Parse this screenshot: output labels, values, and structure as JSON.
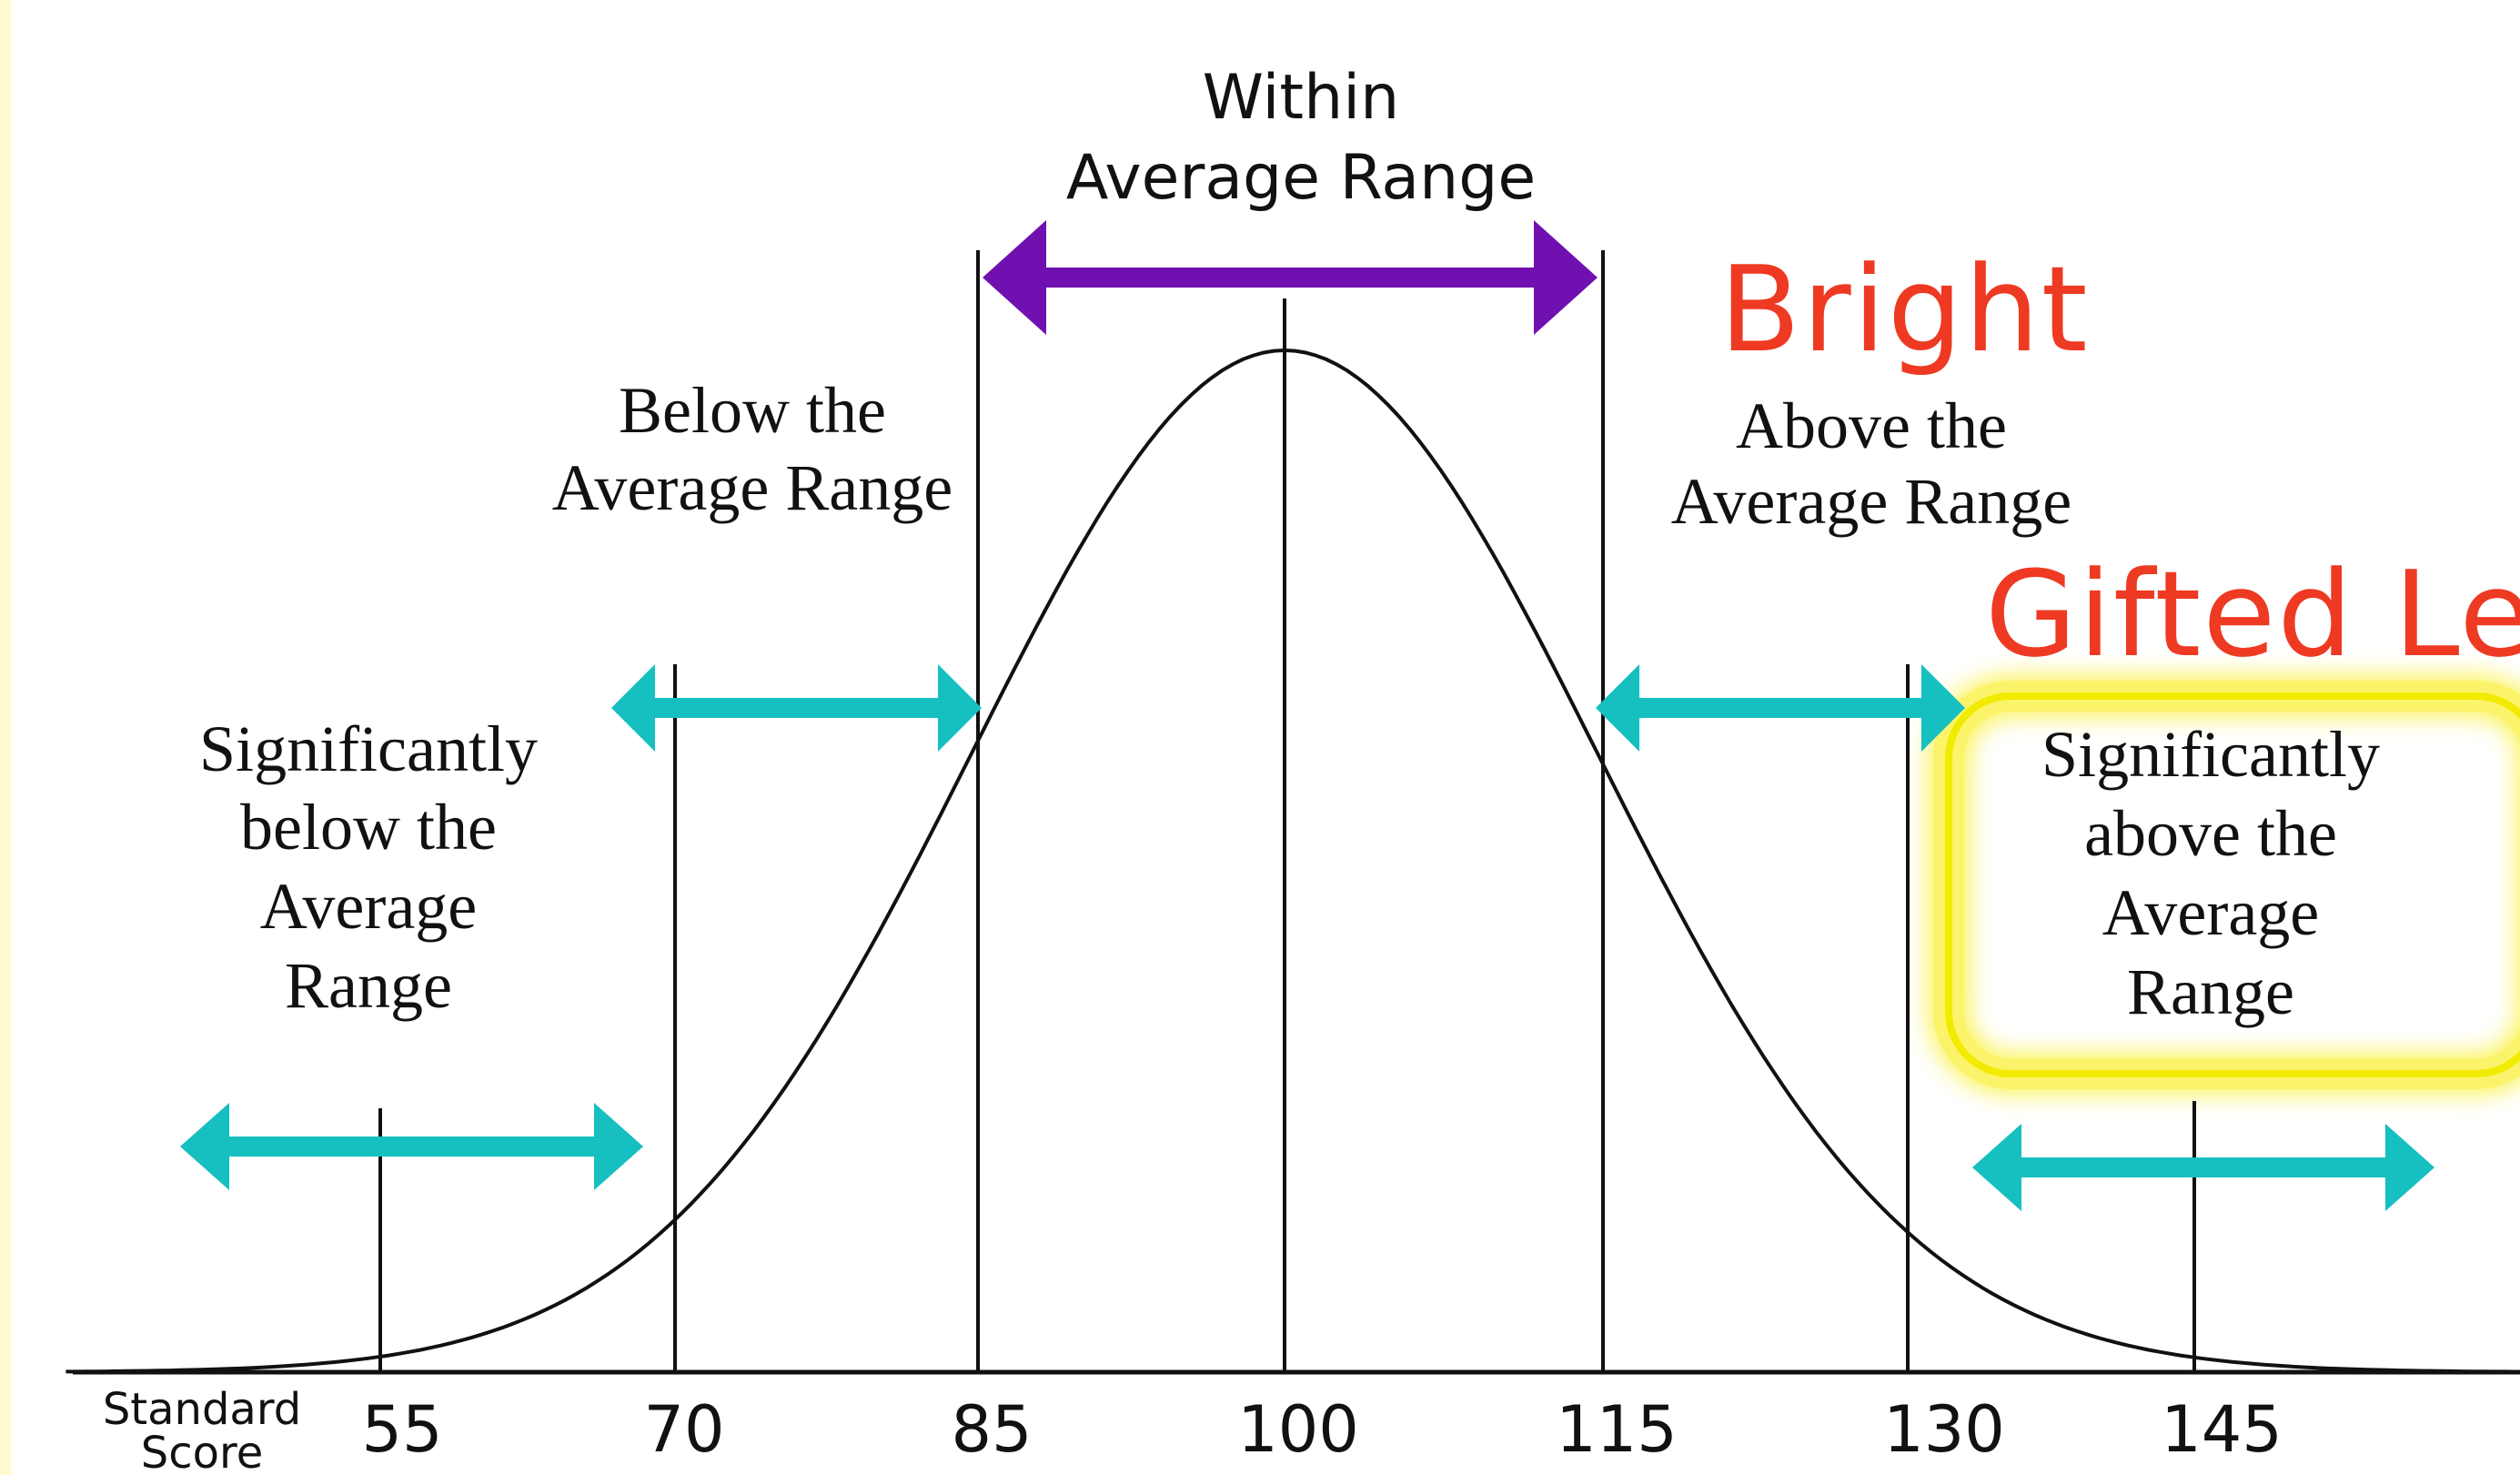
{
  "title": {
    "line1": "Within",
    "line2": "Average Range"
  },
  "labels": {
    "below": {
      "line1": "Below the",
      "line2": "Average Range"
    },
    "above": {
      "line1": "Above the",
      "line2": "Average Range"
    },
    "sig_below": {
      "line1": "Significantly",
      "line2": "below the",
      "line3": "Average",
      "line4": "Range"
    },
    "sig_above": {
      "line1": "Significantly",
      "line2": "above the",
      "line3": "Average",
      "line4": "Range"
    }
  },
  "annotations": {
    "bright": "Bright",
    "gifted": "Gifted Lea"
  },
  "axis": {
    "caption_line1": "Standard",
    "caption_line2": "Score",
    "ticks": [
      "55",
      "70",
      "85",
      "100",
      "115",
      "130",
      "145"
    ]
  },
  "colors": {
    "curve": "#111111",
    "within_arrow": "#7010b0",
    "range_arrows": "#16bfc0",
    "annotation_red": "#ee3a22",
    "highlight_glow": "#f5ef00"
  }
}
